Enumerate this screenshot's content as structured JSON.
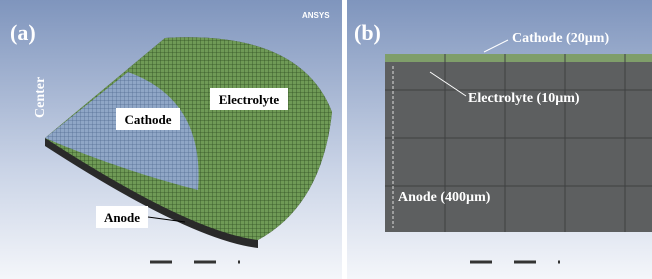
{
  "panel_a": {
    "label": "(a)",
    "logo": "ANSYS",
    "axis_label": "Center",
    "regions": [
      "Cathode",
      "Electrolyte",
      "Anode"
    ]
  },
  "panel_b": {
    "label": "(b)",
    "layers": [
      "Cathode (20µm)",
      "Electrolyte (10µm)",
      "Anode (400µm)"
    ]
  }
}
